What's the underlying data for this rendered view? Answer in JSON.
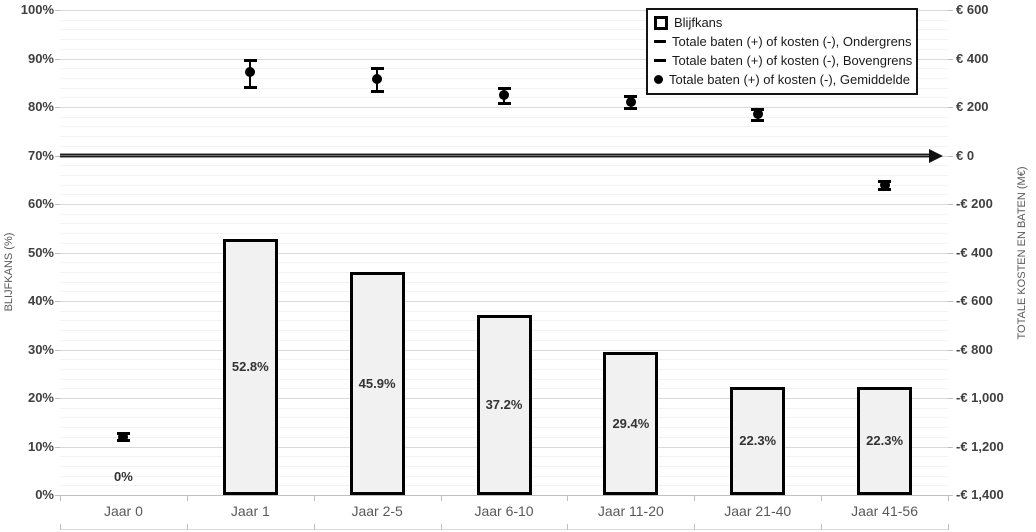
{
  "chart_data": {
    "type": "combo",
    "title": "",
    "categories": [
      "Jaar 0",
      "Jaar 1",
      "Jaar 2-5",
      "Jaar 6-10",
      "Jaar 11-20",
      "Jaar 21-40",
      "Jaar 41-56"
    ],
    "left_axis": {
      "label": "BLIJFKANS (%)",
      "min": 0,
      "max": 100,
      "tick_labels": [
        "100%",
        "90%",
        "80%",
        "70%",
        "60%",
        "50%",
        "40%",
        "30%",
        "20%",
        "10%",
        "0%"
      ]
    },
    "right_axis": {
      "label": "TOTALE KOSTEN EN BATEN  (M€)",
      "min": -1400,
      "max": 600,
      "tick_labels": [
        "€ 600",
        "€ 400",
        "€ 200",
        "€ 0",
        "-€ 200",
        "-€ 400",
        "-€ 600",
        "-€ 800",
        "-€ 1,000",
        "-€ 1,200",
        "-€ 1,400"
      ]
    },
    "grid": {
      "minor_step": 2,
      "major_step": 10,
      "minor_on": true
    },
    "legend_position": "top-right",
    "series": [
      {
        "name": "Blijfkans",
        "type": "bar",
        "axis": "left",
        "values": [
          0,
          52.8,
          45.9,
          37.2,
          29.4,
          22.3,
          22.3
        ],
        "data_labels": [
          "0%",
          "52.8%",
          "45.9%",
          "37.2%",
          "29.4%",
          "22.3%",
          "22.3%"
        ]
      },
      {
        "name": "Totale baten (+) of kosten (-), Ondergrens",
        "type": "error-lower",
        "axis": "right",
        "values": [
          -1175,
          280,
          265,
          215,
          195,
          145,
          -140
        ]
      },
      {
        "name": "Totale baten (+) of kosten (-), Bovengrens",
        "type": "error-upper",
        "axis": "right",
        "values": [
          -1145,
          390,
          360,
          275,
          245,
          190,
          -105
        ]
      },
      {
        "name": "Totale baten (+) of kosten (-), Gemiddelde",
        "type": "point",
        "axis": "right",
        "values": [
          -1160,
          345,
          315,
          250,
          220,
          170,
          -120
        ]
      }
    ],
    "zero_line": {
      "axis": "right",
      "value": 0,
      "arrow": "right"
    }
  },
  "colors": {
    "bar_fill": "#f1f1f1",
    "bar_border": "#000000",
    "marker": "#000000",
    "grid_minor": "#f3f3f3",
    "grid_major": "#d9d9d9",
    "axis_line": "#bfbfbf",
    "tick_text": "#404040",
    "category_text": "#595959",
    "zero_line": "#1f1f1f"
  }
}
